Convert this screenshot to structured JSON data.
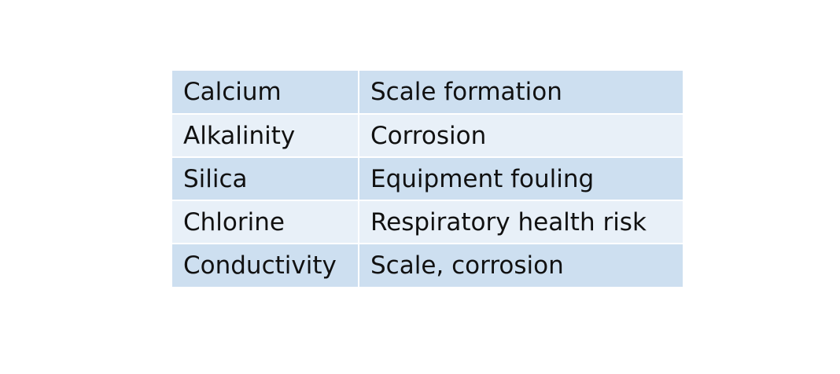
{
  "table": {
    "rows": [
      {
        "parameter": "Calcium",
        "effect": "Scale formation"
      },
      {
        "parameter": "Alkalinity",
        "effect": "Corrosion"
      },
      {
        "parameter": "Silica",
        "effect": "Equipment fouling"
      },
      {
        "parameter": "Chlorine",
        "effect": "Respiratory health risk"
      },
      {
        "parameter": "Conductivity",
        "effect": "Scale, corrosion"
      }
    ],
    "colors": {
      "band_dark": "#cddff0",
      "band_light": "#e8f0f8",
      "text": "#111111"
    }
  }
}
